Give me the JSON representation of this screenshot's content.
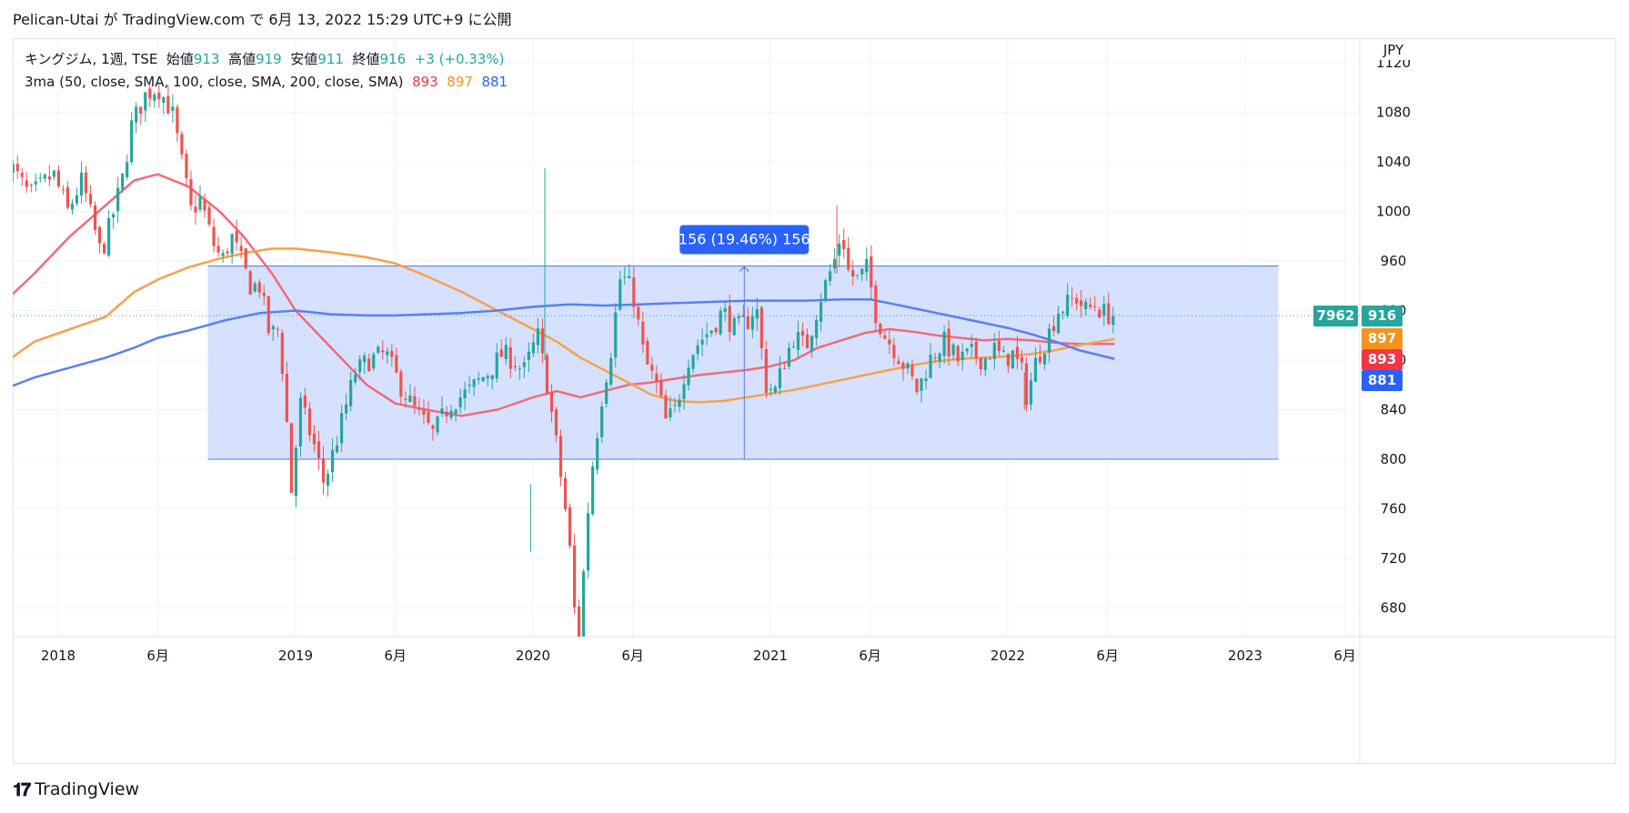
{
  "header": {
    "publish_line": "Pelican-Utai が TradingView.com で 6月 13, 2022 15:29 UTC+9 に公開"
  },
  "legend": {
    "symbol": "キングジム, 1週, TSE",
    "open_label": "始値",
    "open_value": "913",
    "high_label": "高値",
    "high_value": "919",
    "low_label": "安値",
    "low_value": "911",
    "close_label": "終値",
    "close_value": "916",
    "change": "+3 (+0.33%)",
    "ma_label": "3ma (50, close, SMA, 100, close, SMA, 200, close, SMA)",
    "ma50_value": "893",
    "ma100_value": "897",
    "ma200_value": "881"
  },
  "price_axis": {
    "currency": "JPY",
    "badges": {
      "countdown": "7962",
      "last": "916",
      "ma100": "897",
      "ma50": "893",
      "ma200": "881"
    }
  },
  "measure": {
    "label": "156 (19.46%) 156"
  },
  "footer": {
    "brand": "TradingView"
  },
  "colors": {
    "up": "#26a69a",
    "down": "#ef5350",
    "ma50": "#f06b7a",
    "ma100": "#f7a04d",
    "ma200": "#5b7ff0",
    "range_fill": "#cfdcff",
    "range_edge": "#4f7bea",
    "measure_badge": "#2962ff"
  },
  "chart_data": {
    "type": "candlestick",
    "title": "キングジム, 1週, TSE",
    "ylabel": "JPY",
    "ylim": [
      655,
      1130
    ],
    "y_ticks": [
      680,
      720,
      760,
      800,
      840,
      880,
      920,
      960,
      1000,
      1040,
      1080,
      1120
    ],
    "x_ticks": [
      {
        "label": "2018",
        "t": 2018.0
      },
      {
        "label": "6月",
        "t": 2018.42
      },
      {
        "label": "2019",
        "t": 2019.0
      },
      {
        "label": "6月",
        "t": 2019.42
      },
      {
        "label": "2020",
        "t": 2020.0
      },
      {
        "label": "6月",
        "t": 2020.42
      },
      {
        "label": "2021",
        "t": 2021.0
      },
      {
        "label": "6月",
        "t": 2021.42
      },
      {
        "label": "2022",
        "t": 2022.0
      },
      {
        "label": "6月",
        "t": 2022.42
      },
      {
        "label": "2023",
        "t": 2023.0
      },
      {
        "label": "6月",
        "t": 2023.42
      }
    ],
    "last_close": 916,
    "price_anchors": [
      [
        2017.79,
        1040
      ],
      [
        2017.88,
        1012
      ],
      [
        2017.98,
        1030
      ],
      [
        2018.04,
        1000
      ],
      [
        2018.1,
        1025
      ],
      [
        2018.18,
        965
      ],
      [
        2018.22,
        990
      ],
      [
        2018.27,
        1025
      ],
      [
        2018.31,
        1070
      ],
      [
        2018.37,
        1095
      ],
      [
        2018.42,
        1100
      ],
      [
        2018.48,
        1080
      ],
      [
        2018.52,
        1040
      ],
      [
        2018.56,
        1000
      ],
      [
        2018.6,
        1010
      ],
      [
        2018.65,
        975
      ],
      [
        2018.69,
        960
      ],
      [
        2018.73,
        980
      ],
      [
        2018.77,
        960
      ],
      [
        2018.81,
        940
      ],
      [
        2018.85,
        940
      ],
      [
        2018.89,
        900
      ],
      [
        2018.93,
        905
      ],
      [
        2018.96,
        840
      ],
      [
        2018.98,
        770
      ],
      [
        2019.02,
        845
      ],
      [
        2019.08,
        810
      ],
      [
        2019.12,
        780
      ],
      [
        2019.18,
        820
      ],
      [
        2019.25,
        870
      ],
      [
        2019.31,
        880
      ],
      [
        2019.38,
        885
      ],
      [
        2019.44,
        860
      ],
      [
        2019.5,
        840
      ],
      [
        2019.58,
        820
      ],
      [
        2019.65,
        845
      ],
      [
        2019.73,
        855
      ],
      [
        2019.81,
        870
      ],
      [
        2019.87,
        885
      ],
      [
        2019.92,
        880
      ],
      [
        2019.96,
        870
      ],
      [
        2020.02,
        900
      ],
      [
        2020.06,
        860
      ],
      [
        2020.1,
        810
      ],
      [
        2020.15,
        740
      ],
      [
        2020.19,
        640
      ],
      [
        2020.21,
        700
      ],
      [
        2020.24,
        780
      ],
      [
        2020.29,
        850
      ],
      [
        2020.33,
        890
      ],
      [
        2020.37,
        950
      ],
      [
        2020.42,
        935
      ],
      [
        2020.47,
        880
      ],
      [
        2020.52,
        860
      ],
      [
        2020.56,
        830
      ],
      [
        2020.6,
        840
      ],
      [
        2020.65,
        880
      ],
      [
        2020.7,
        895
      ],
      [
        2020.75,
        905
      ],
      [
        2020.8,
        920
      ],
      [
        2020.85,
        905
      ],
      [
        2020.9,
        910
      ],
      [
        2020.94,
        925
      ],
      [
        2020.98,
        860
      ],
      [
        2021.02,
        855
      ],
      [
        2021.06,
        880
      ],
      [
        2021.1,
        900
      ],
      [
        2021.15,
        890
      ],
      [
        2021.21,
        930
      ],
      [
        2021.27,
        960
      ],
      [
        2021.3,
        985
      ],
      [
        2021.33,
        950
      ],
      [
        2021.37,
        945
      ],
      [
        2021.41,
        955
      ],
      [
        2021.44,
        920
      ],
      [
        2021.48,
        900
      ],
      [
        2021.52,
        890
      ],
      [
        2021.58,
        870
      ],
      [
        2021.62,
        855
      ],
      [
        2021.67,
        880
      ],
      [
        2021.73,
        895
      ],
      [
        2021.79,
        880
      ],
      [
        2021.85,
        885
      ],
      [
        2021.9,
        880
      ],
      [
        2021.94,
        890
      ],
      [
        2021.98,
        880
      ],
      [
        2022.02,
        885
      ],
      [
        2022.06,
        870
      ],
      [
        2022.08,
        850
      ],
      [
        2022.12,
        880
      ],
      [
        2022.17,
        900
      ],
      [
        2022.21,
        920
      ],
      [
        2022.25,
        925
      ],
      [
        2022.29,
        930
      ],
      [
        2022.33,
        920
      ],
      [
        2022.37,
        925
      ],
      [
        2022.4,
        918
      ],
      [
        2022.45,
        916
      ]
    ],
    "series": [
      {
        "name": "50",
        "color": "#f06b7a",
        "points": [
          [
            2017.79,
            930
          ],
          [
            2017.9,
            950
          ],
          [
            2018.05,
            980
          ],
          [
            2018.2,
            1005
          ],
          [
            2018.32,
            1025
          ],
          [
            2018.42,
            1030
          ],
          [
            2018.55,
            1020
          ],
          [
            2018.68,
            1000
          ],
          [
            2018.78,
            980
          ],
          [
            2018.9,
            950
          ],
          [
            2019.0,
            920
          ],
          [
            2019.1,
            900
          ],
          [
            2019.2,
            880
          ],
          [
            2019.3,
            860
          ],
          [
            2019.42,
            845
          ],
          [
            2019.55,
            840
          ],
          [
            2019.7,
            835
          ],
          [
            2019.85,
            840
          ],
          [
            2020.0,
            850
          ],
          [
            2020.1,
            855
          ],
          [
            2020.2,
            850
          ],
          [
            2020.3,
            855
          ],
          [
            2020.4,
            860
          ],
          [
            2020.5,
            862
          ],
          [
            2020.6,
            865
          ],
          [
            2020.7,
            868
          ],
          [
            2020.8,
            870
          ],
          [
            2020.9,
            872
          ],
          [
            2021.0,
            875
          ],
          [
            2021.1,
            880
          ],
          [
            2021.2,
            890
          ],
          [
            2021.3,
            896
          ],
          [
            2021.4,
            902
          ],
          [
            2021.5,
            905
          ],
          [
            2021.6,
            903
          ],
          [
            2021.7,
            900
          ],
          [
            2021.8,
            898
          ],
          [
            2021.9,
            896
          ],
          [
            2022.0,
            897
          ],
          [
            2022.1,
            896
          ],
          [
            2022.2,
            894
          ],
          [
            2022.3,
            893
          ],
          [
            2022.45,
            893
          ]
        ]
      },
      {
        "name": "100",
        "color": "#f7a04d",
        "points": [
          [
            2017.79,
            880
          ],
          [
            2017.9,
            895
          ],
          [
            2018.05,
            905
          ],
          [
            2018.2,
            915
          ],
          [
            2018.32,
            935
          ],
          [
            2018.42,
            945
          ],
          [
            2018.55,
            955
          ],
          [
            2018.68,
            962
          ],
          [
            2018.8,
            967
          ],
          [
            2018.9,
            970
          ],
          [
            2019.0,
            970
          ],
          [
            2019.15,
            967
          ],
          [
            2019.3,
            963
          ],
          [
            2019.42,
            958
          ],
          [
            2019.55,
            948
          ],
          [
            2019.7,
            935
          ],
          [
            2019.85,
            920
          ],
          [
            2020.0,
            905
          ],
          [
            2020.1,
            895
          ],
          [
            2020.2,
            882
          ],
          [
            2020.3,
            872
          ],
          [
            2020.4,
            862
          ],
          [
            2020.5,
            852
          ],
          [
            2020.6,
            847
          ],
          [
            2020.7,
            846
          ],
          [
            2020.8,
            847
          ],
          [
            2020.9,
            850
          ],
          [
            2021.0,
            853
          ],
          [
            2021.1,
            856
          ],
          [
            2021.2,
            860
          ],
          [
            2021.3,
            864
          ],
          [
            2021.4,
            868
          ],
          [
            2021.5,
            872
          ],
          [
            2021.6,
            876
          ],
          [
            2021.7,
            879
          ],
          [
            2021.8,
            881
          ],
          [
            2021.9,
            882
          ],
          [
            2022.0,
            883
          ],
          [
            2022.1,
            885
          ],
          [
            2022.2,
            888
          ],
          [
            2022.3,
            892
          ],
          [
            2022.45,
            897
          ]
        ]
      },
      {
        "name": "200",
        "color": "#5b7ff0",
        "points": [
          [
            2017.79,
            858
          ],
          [
            2017.9,
            866
          ],
          [
            2018.05,
            874
          ],
          [
            2018.2,
            882
          ],
          [
            2018.32,
            890
          ],
          [
            2018.42,
            898
          ],
          [
            2018.55,
            904
          ],
          [
            2018.7,
            912
          ],
          [
            2018.85,
            918
          ],
          [
            2019.0,
            920
          ],
          [
            2019.15,
            917
          ],
          [
            2019.3,
            916
          ],
          [
            2019.42,
            916
          ],
          [
            2019.55,
            917
          ],
          [
            2019.7,
            918
          ],
          [
            2019.85,
            920
          ],
          [
            2020.0,
            923
          ],
          [
            2020.15,
            925
          ],
          [
            2020.3,
            924
          ],
          [
            2020.45,
            925
          ],
          [
            2020.6,
            926
          ],
          [
            2020.75,
            927
          ],
          [
            2020.9,
            928
          ],
          [
            2021.0,
            928
          ],
          [
            2021.15,
            928
          ],
          [
            2021.3,
            929
          ],
          [
            2021.42,
            929
          ],
          [
            2021.55,
            924
          ],
          [
            2021.7,
            918
          ],
          [
            2021.85,
            912
          ],
          [
            2022.0,
            906
          ],
          [
            2022.1,
            901
          ],
          [
            2022.2,
            895
          ],
          [
            2022.3,
            888
          ],
          [
            2022.45,
            881
          ]
        ]
      }
    ],
    "range_box": {
      "t0": 2018.63,
      "t1": 2023.14,
      "y0": 800,
      "y1": 956
    },
    "measure_t": 2020.89,
    "measure_text": "156 (19.46%) 156"
  }
}
